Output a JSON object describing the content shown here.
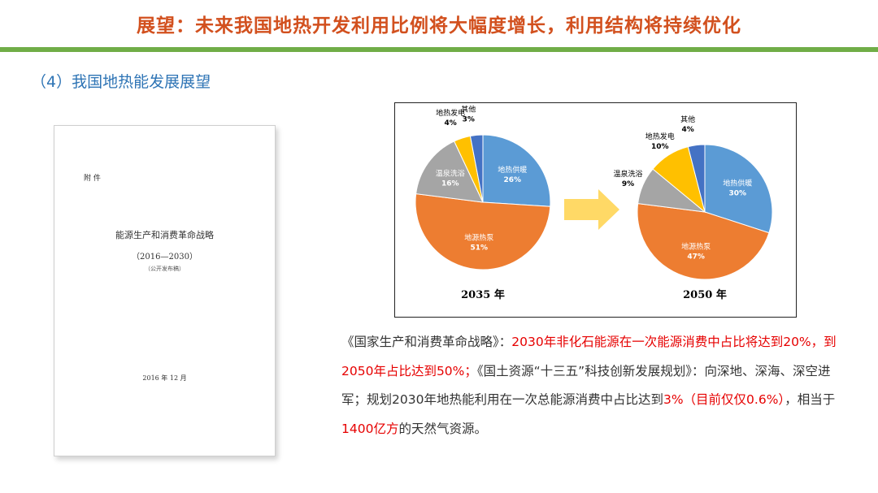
{
  "header": {
    "title": "展望：未来我国地热开发利用比例将大幅度增长，利用结构将持续优化"
  },
  "subtitle": "（4）我国地热能发展展望",
  "document": {
    "attachment_label": "附 件",
    "title": "能源生产和消费革命战略",
    "years": "（2016—2030）",
    "note": "（公开发布稿）",
    "date": "2016 年 12 月"
  },
  "chart_data": [
    {
      "type": "pie",
      "xlabel": "2035 年",
      "categories": [
        "地热供暖",
        "地源热泵",
        "温泉洗浴",
        "地热发电",
        "其他"
      ],
      "values": [
        26,
        51,
        16,
        4,
        3
      ],
      "value_labels": [
        "26%",
        "51%",
        "16%",
        "4%",
        "3%"
      ],
      "colors": [
        "#5B9BD5",
        "#ED7D31",
        "#A5A5A5",
        "#FFC000",
        "#4472C4"
      ]
    },
    {
      "type": "pie",
      "xlabel": "2050 年",
      "categories": [
        "地热供暖",
        "地源热泵",
        "温泉洗浴",
        "地热发电",
        "其他"
      ],
      "values": [
        30,
        47,
        9,
        10,
        4
      ],
      "value_labels": [
        "30%",
        "47%",
        "9%",
        "10%",
        "4%"
      ],
      "colors": [
        "#5B9BD5",
        "#ED7D31",
        "#A5A5A5",
        "#FFC000",
        "#4472C4"
      ]
    }
  ],
  "arrow_color": "#FFD966",
  "paragraph": {
    "s1": "《国家生产和消费革命战略》：",
    "s2": "2030年非化石能源在一次能源消费中占比将达到20%，到2050年占比达到50%；",
    "s3": "《国土资源“十三五”科技创新发展规划》：向深地、深海、深空进军；规划2030年地热能利用在一次总能源消费中占比达到",
    "s4": "3%",
    "s5": "（目前仅仅0.6%）",
    "s6": "，相当于",
    "s7": "1400亿方",
    "s8": "的天然气资源。"
  }
}
